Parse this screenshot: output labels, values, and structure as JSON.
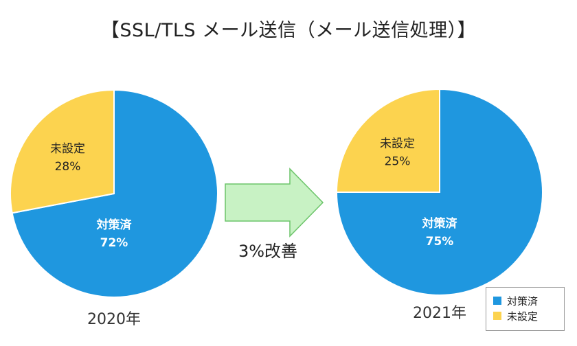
{
  "title": "【SSL/TLS メール送信（メール送信処理）】",
  "improvement_label": "3%改善",
  "legend": {
    "items": [
      {
        "label": "対策済",
        "color": "#1f97df"
      },
      {
        "label": "未設定",
        "color": "#fcd34f"
      }
    ]
  },
  "chart_data": [
    {
      "type": "pie",
      "title": "2020年",
      "slices": [
        {
          "label": "対策済",
          "value": 72,
          "display": "72%",
          "color": "#1f97df"
        },
        {
          "label": "未設定",
          "value": 28,
          "display": "28%",
          "color": "#fcd34f"
        }
      ]
    },
    {
      "type": "pie",
      "title": "2021年",
      "slices": [
        {
          "label": "対策済",
          "value": 75,
          "display": "75%",
          "color": "#1f97df"
        },
        {
          "label": "未設定",
          "value": 25,
          "display": "25%",
          "color": "#fcd34f"
        }
      ]
    }
  ]
}
